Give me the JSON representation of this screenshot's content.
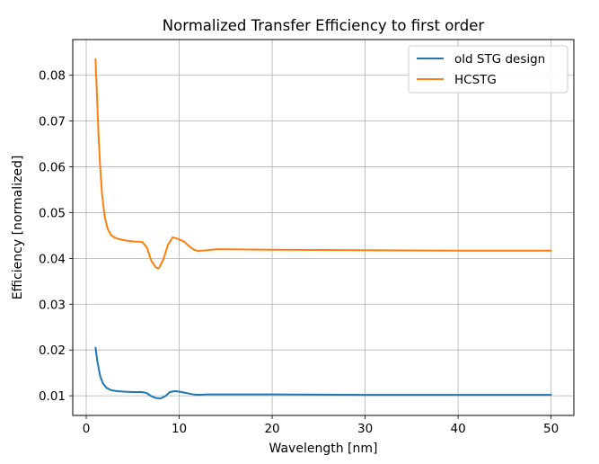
{
  "chart_data": {
    "type": "line",
    "title": "Normalized Transfer Efficiency to first order",
    "xlabel": "Wavelength [nm]",
    "ylabel": "Efficiency [normalized]",
    "xlim": [
      -1.45,
      52.45
    ],
    "ylim": [
      0.0057,
      0.0878
    ],
    "xticks": [
      0,
      10,
      20,
      30,
      40,
      50
    ],
    "yticks": [
      0.01,
      0.02,
      0.03,
      0.04,
      0.05,
      0.06,
      0.07,
      0.08
    ],
    "grid": true,
    "legend_position": "top-right",
    "series": [
      {
        "name": "old STG design",
        "color": "#1f77b4",
        "points": [
          [
            1.0,
            0.0205
          ],
          [
            1.2,
            0.0175
          ],
          [
            1.5,
            0.0143
          ],
          [
            1.8,
            0.0127
          ],
          [
            2.2,
            0.0117
          ],
          [
            2.7,
            0.0112
          ],
          [
            3.3,
            0.011
          ],
          [
            4.0,
            0.0109
          ],
          [
            5.0,
            0.0108
          ],
          [
            6.0,
            0.0108
          ],
          [
            6.5,
            0.0106
          ],
          [
            7.0,
            0.0099
          ],
          [
            7.5,
            0.0095
          ],
          [
            8.0,
            0.0094
          ],
          [
            8.5,
            0.0099
          ],
          [
            9.0,
            0.0108
          ],
          [
            9.5,
            0.011
          ],
          [
            10.0,
            0.0109
          ],
          [
            10.5,
            0.0107
          ],
          [
            11.0,
            0.0105
          ],
          [
            11.5,
            0.0103
          ],
          [
            12.0,
            0.0102
          ],
          [
            13.0,
            0.0103
          ],
          [
            15.0,
            0.0103
          ],
          [
            20.0,
            0.0103
          ],
          [
            30.0,
            0.0102
          ],
          [
            40.0,
            0.0102
          ],
          [
            50.0,
            0.0102
          ]
        ]
      },
      {
        "name": "HCSTG",
        "color": "#ff7f0e",
        "points": [
          [
            1.0,
            0.0835
          ],
          [
            1.15,
            0.076
          ],
          [
            1.3,
            0.068
          ],
          [
            1.5,
            0.06
          ],
          [
            1.7,
            0.054
          ],
          [
            2.0,
            0.049
          ],
          [
            2.3,
            0.0465
          ],
          [
            2.7,
            0.045
          ],
          [
            3.2,
            0.0444
          ],
          [
            4.0,
            0.044
          ],
          [
            5.0,
            0.0437
          ],
          [
            6.0,
            0.0436
          ],
          [
            6.5,
            0.0425
          ],
          [
            7.0,
            0.0395
          ],
          [
            7.5,
            0.038
          ],
          [
            7.8,
            0.0378
          ],
          [
            8.3,
            0.0398
          ],
          [
            8.8,
            0.043
          ],
          [
            9.3,
            0.0446
          ],
          [
            9.8,
            0.0443
          ],
          [
            10.5,
            0.0437
          ],
          [
            11.0,
            0.0428
          ],
          [
            11.5,
            0.042
          ],
          [
            12.0,
            0.0416
          ],
          [
            12.5,
            0.0417
          ],
          [
            13.0,
            0.0418
          ],
          [
            14.0,
            0.042
          ],
          [
            20.0,
            0.0419
          ],
          [
            30.0,
            0.0418
          ],
          [
            40.0,
            0.0417
          ],
          [
            50.0,
            0.0417
          ]
        ]
      }
    ]
  }
}
